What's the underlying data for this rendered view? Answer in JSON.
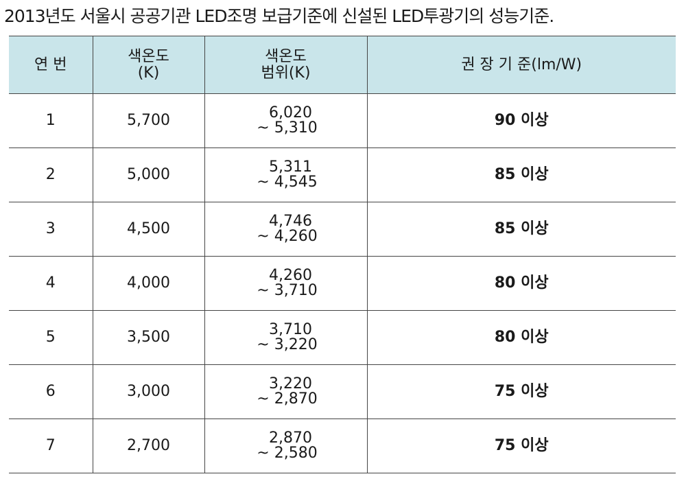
{
  "title": "2013년도 서울시 공공기관 LED조명 보급기준에 신설된 LED투광기의 성능기준.",
  "table": {
    "headers": [
      "연 번",
      [
        "색온도",
        "(K)"
      ],
      [
        "색온도",
        "범위(K)"
      ],
      "권 장 기 준(lm/W)"
    ],
    "rows": [
      [
        "1",
        "5,700",
        [
          "6,020",
          "~ 5,310"
        ],
        "90 이상"
      ],
      [
        "2",
        "5,000",
        [
          "5,311",
          "~ 4,545"
        ],
        "85 이상"
      ],
      [
        "3",
        "4,500",
        [
          "4,746",
          "~ 4,260"
        ],
        "85 이상"
      ],
      [
        "4",
        "4,000",
        [
          "4,260",
          "~ 3,710"
        ],
        "80 이상"
      ],
      [
        "5",
        "3,500",
        [
          "3,710",
          "~ 3,220"
        ],
        "80 이상"
      ],
      [
        "6",
        "3,000",
        [
          "3,220",
          "~ 2,870"
        ],
        "75 이상"
      ],
      [
        "7",
        "2,700",
        [
          "2,870",
          "~ 2,580"
        ],
        "75 이상"
      ]
    ]
  }
}
